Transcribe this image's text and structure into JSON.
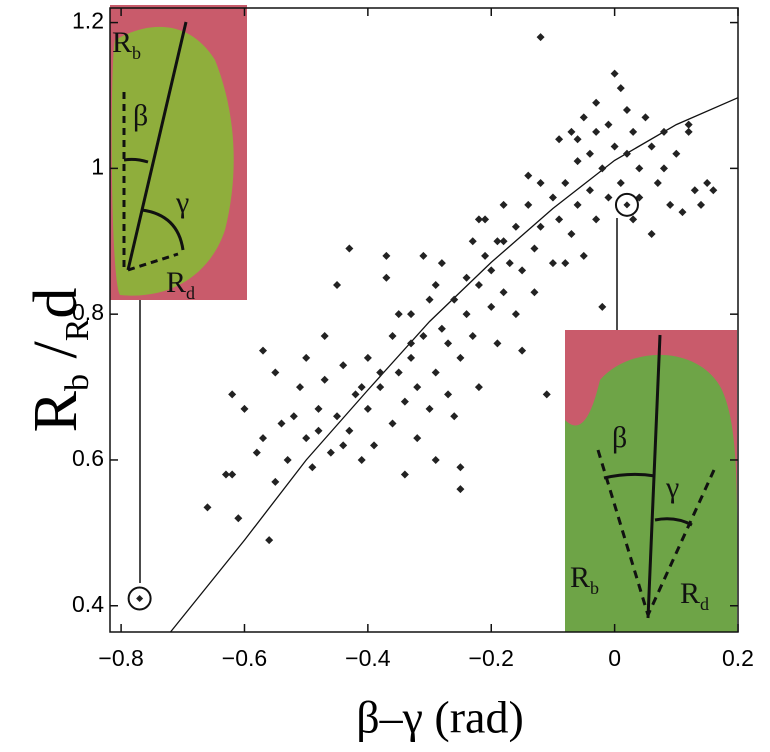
{
  "chart_data": {
    "type": "scatter",
    "xlabel": "β–γ (rad)",
    "ylabel": [
      "R",
      "b",
      " /",
      "R",
      "d"
    ],
    "xlim": [
      -0.818,
      0.2
    ],
    "ylim": [
      0.364,
      1.22
    ],
    "xticks": [
      {
        "value": -0.8,
        "label": "−0.8"
      },
      {
        "value": -0.6,
        "label": "−0.6"
      },
      {
        "value": -0.4,
        "label": "−0.4"
      },
      {
        "value": -0.2,
        "label": "−0.2"
      },
      0,
      0.2
    ],
    "yticks": [
      0.4,
      0.6,
      0.8,
      1,
      1.2
    ],
    "color": "#222222",
    "x": [
      -0.66,
      -0.62,
      -0.61,
      -0.6,
      -0.62,
      -0.58,
      -0.57,
      -0.56,
      -0.57,
      -0.55,
      -0.55,
      -0.53,
      -0.52,
      -0.51,
      -0.5,
      -0.5,
      -0.49,
      -0.48,
      -0.47,
      -0.47,
      -0.46,
      -0.45,
      -0.44,
      -0.43,
      -0.42,
      -0.43,
      -0.41,
      -0.4,
      -0.4,
      -0.39,
      -0.38,
      -0.37,
      -0.37,
      -0.36,
      -0.36,
      -0.35,
      -0.34,
      -0.34,
      -0.33,
      -0.33,
      -0.32,
      -0.32,
      -0.31,
      -0.3,
      -0.3,
      -0.29,
      -0.29,
      -0.28,
      -0.28,
      -0.27,
      -0.27,
      -0.26,
      -0.25,
      -0.25,
      -0.25,
      -0.24,
      -0.24,
      -0.23,
      -0.23,
      -0.22,
      -0.22,
      -0.21,
      -0.21,
      -0.2,
      -0.2,
      -0.19,
      -0.19,
      -0.18,
      -0.18,
      -0.17,
      -0.16,
      -0.16,
      -0.15,
      -0.15,
      -0.14,
      -0.13,
      -0.13,
      -0.12,
      -0.12,
      -0.11,
      -0.1,
      -0.1,
      -0.09,
      -0.09,
      -0.08,
      -0.08,
      -0.07,
      -0.07,
      -0.06,
      -0.06,
      -0.05,
      -0.05,
      -0.04,
      -0.04,
      -0.03,
      -0.03,
      -0.03,
      -0.02,
      -0.02,
      -0.01,
      -0.01,
      0,
      0,
      0.01,
      0.01,
      0.02,
      0.02,
      0.03,
      0.03,
      0.04,
      0.04,
      0.05,
      0.06,
      0.06,
      0.07,
      0.08,
      0.09,
      0.1,
      0.11,
      0.12,
      0.13,
      0.14,
      0.15,
      0.16,
      -0.12,
      -0.45,
      -0.63,
      -0.44,
      -0.26,
      -0.35,
      -0.22,
      -0.31,
      -0.54,
      -0.48,
      -0.38,
      -0.29,
      -0.18,
      -0.14,
      -0.06,
      0.08,
      0.12,
      -0.41,
      -0.33
    ],
    "values": [
      0.535,
      0.58,
      0.52,
      0.67,
      0.69,
      0.61,
      0.63,
      0.49,
      0.75,
      0.57,
      0.72,
      0.6,
      0.66,
      0.7,
      0.63,
      0.74,
      0.59,
      0.67,
      0.71,
      0.77,
      0.61,
      0.66,
      0.73,
      0.64,
      0.69,
      0.89,
      0.6,
      0.74,
      0.67,
      0.62,
      0.7,
      0.85,
      0.88,
      0.65,
      0.77,
      0.72,
      0.58,
      0.68,
      0.8,
      0.74,
      0.63,
      0.7,
      0.77,
      0.82,
      0.67,
      0.72,
      0.6,
      0.78,
      0.87,
      0.69,
      0.76,
      0.82,
      0.74,
      0.59,
      0.56,
      0.85,
      0.8,
      0.77,
      0.9,
      0.84,
      0.7,
      0.88,
      0.93,
      0.81,
      0.86,
      0.76,
      0.9,
      0.83,
      0.95,
      0.87,
      0.8,
      0.92,
      0.86,
      0.75,
      0.95,
      0.89,
      0.83,
      0.98,
      0.92,
      0.69,
      0.87,
      0.96,
      1.04,
      0.93,
      0.98,
      0.87,
      1.05,
      0.91,
      1.01,
      0.95,
      1.07,
      0.88,
      1.02,
      0.97,
      1.09,
      1.05,
      0.93,
      1.0,
      0.81,
      1.06,
      0.96,
      1.13,
      1.03,
      1.11,
      0.98,
      1.08,
      1.02,
      1.05,
      0.93,
      1.0,
      0.96,
      1.07,
      1.03,
      0.91,
      0.98,
      1.05,
      0.95,
      1.02,
      0.94,
      1.06,
      0.97,
      0.95,
      0.98,
      0.97,
      1.18,
      0.84,
      0.58,
      0.62,
      0.66,
      0.8,
      0.93,
      0.88,
      0.65,
      0.64,
      0.72,
      0.84,
      0.9,
      0.99,
      1.04,
      1.0,
      1.05,
      0.7,
      0.76
    ],
    "highlighted": {
      "x": [
        -0.77,
        0.02
      ],
      "values": [
        0.41,
        0.95
      ]
    },
    "fit": {
      "x": [
        -0.72,
        -0.6,
        -0.5,
        -0.4,
        -0.3,
        -0.2,
        -0.1,
        0,
        0.1,
        0.2
      ],
      "values": [
        0.364,
        0.49,
        0.6,
        0.696,
        0.79,
        0.871,
        0.945,
        1.011,
        1.06,
        1.097
      ]
    },
    "insets": [
      {
        "labels": [
          [
            "R",
            "b"
          ],
          [
            "β"
          ],
          [
            "γ"
          ],
          [
            "R",
            "d"
          ]
        ]
      },
      {
        "labels": [
          [
            "β"
          ],
          [
            "γ"
          ],
          [
            "R",
            "b"
          ],
          [
            "R",
            "d"
          ]
        ]
      }
    ]
  }
}
